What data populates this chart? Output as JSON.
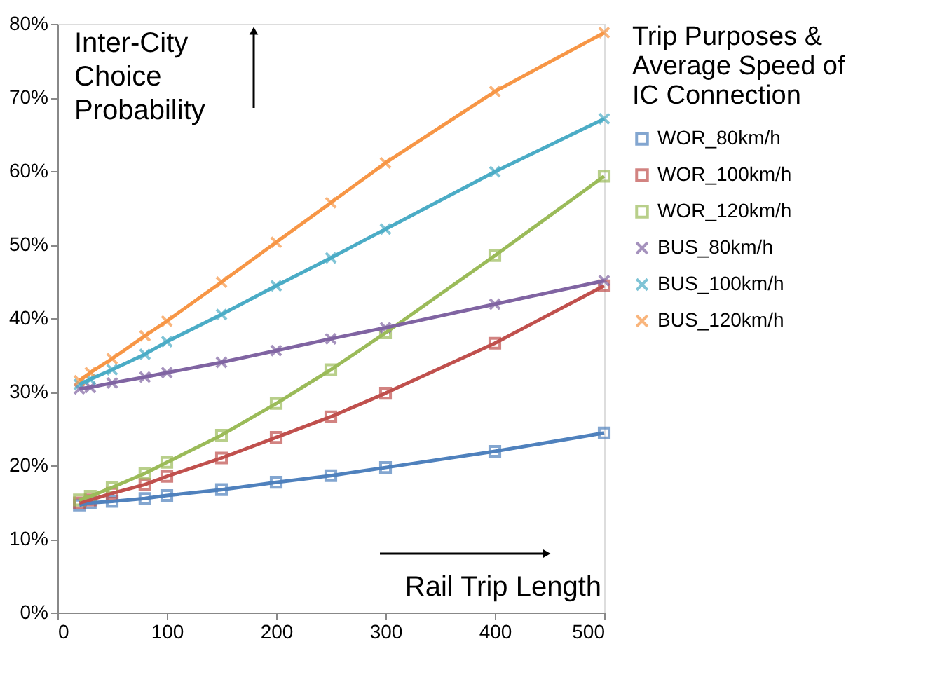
{
  "chart_data": {
    "type": "line",
    "xlabel": "Rail Trip Length",
    "ylabel": "Inter-City Choice Probability",
    "legend_title": "Trip Purposes & Average Speed of IC Connection",
    "x": [
      20,
      30,
      50,
      80,
      100,
      150,
      200,
      250,
      300,
      400,
      500
    ],
    "xlim": [
      0,
      500
    ],
    "xticks": [
      0,
      100,
      200,
      300,
      400,
      500
    ],
    "ylim": [
      0,
      80
    ],
    "yticks": [
      {
        "value": 0,
        "label": "0%"
      },
      {
        "value": 10,
        "label": "10%"
      },
      {
        "value": 20,
        "label": "20%"
      },
      {
        "value": 30,
        "label": "30%"
      },
      {
        "value": 40,
        "label": "40%"
      },
      {
        "value": 50,
        "label": "50%"
      },
      {
        "value": 60,
        "label": "60%"
      },
      {
        "value": 70,
        "label": "70%"
      },
      {
        "value": 80,
        "label": "80%"
      }
    ],
    "grid": false,
    "legend": "right",
    "line_style": "solid",
    "series": [
      {
        "name": "WOR_80km/h",
        "color": "#4f81bd",
        "marker": "square",
        "values": [
          14.6,
          14.9,
          15.1,
          15.5,
          15.9,
          16.7,
          17.7,
          18.6,
          19.7,
          21.9,
          24.4
        ]
      },
      {
        "name": "WOR_100km/h",
        "color": "#c0504d",
        "marker": "square",
        "values": [
          14.9,
          15.3,
          16.2,
          17.4,
          18.5,
          21.0,
          23.8,
          26.6,
          29.8,
          36.6,
          44.4
        ]
      },
      {
        "name": "WOR_120km/h",
        "color": "#9bbb59",
        "marker": "square",
        "values": [
          15.3,
          15.8,
          17.0,
          18.9,
          20.4,
          24.1,
          28.4,
          33.0,
          38.0,
          48.5,
          59.3
        ]
      },
      {
        "name": "BUS_80km/h",
        "color": "#8064a2",
        "marker": "cross",
        "values": [
          30.4,
          30.6,
          31.2,
          32.0,
          32.6,
          34.0,
          35.6,
          37.2,
          38.7,
          41.9,
          45.1
        ]
      },
      {
        "name": "BUS_100km/h",
        "color": "#4bacc6",
        "marker": "cross",
        "values": [
          31.0,
          31.7,
          33.0,
          35.1,
          36.8,
          40.5,
          44.4,
          48.2,
          52.1,
          59.9,
          67.1
        ]
      },
      {
        "name": "BUS_120km/h",
        "color": "#f79646",
        "marker": "cross",
        "values": [
          31.5,
          32.6,
          34.5,
          37.6,
          39.6,
          44.9,
          50.3,
          55.7,
          61.1,
          70.8,
          78.8
        ]
      }
    ]
  }
}
